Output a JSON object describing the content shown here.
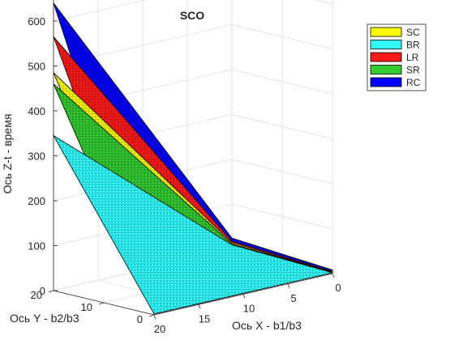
{
  "chart_data": {
    "type": "surface3d",
    "title": "SCO",
    "xlabel": "Ось X - b1/b3",
    "ylabel": "Ось Y - b2/b3",
    "zlabel": "Ось Z-t - время",
    "x_ticks": [
      "0",
      "5",
      "10",
      "15",
      "20"
    ],
    "y_ticks": [
      "0",
      "10",
      "20"
    ],
    "z_ticks": [
      "0",
      "100",
      "200",
      "300",
      "400",
      "500",
      "600"
    ],
    "xlim": [
      0,
      20
    ],
    "ylim": [
      0,
      20
    ],
    "zlim": [
      0,
      650
    ],
    "grid": true,
    "legend_position": "top-right",
    "series": [
      {
        "name": "SC",
        "color": "#ffff00",
        "z_corners": {
          "x0y0": 3,
          "x20y0": 3,
          "x20y20": 485,
          "x0y20": 15
        }
      },
      {
        "name": "BR",
        "color": "#33ffff",
        "z_corners": {
          "x0y0": 2,
          "x20y0": 2,
          "x20y20": 345,
          "x0y20": 10
        }
      },
      {
        "name": "LR",
        "color": "#ff1a1a",
        "z_corners": {
          "x0y0": 5,
          "x20y0": 5,
          "x20y20": 565,
          "x0y20": 18
        }
      },
      {
        "name": "SR",
        "color": "#33cc33",
        "z_corners": {
          "x0y0": 3,
          "x20y0": 3,
          "x20y20": 460,
          "x0y20": 12
        }
      },
      {
        "name": "RC",
        "color": "#0000ff",
        "z_corners": {
          "x0y0": 8,
          "x20y0": 8,
          "x20y20": 640,
          "x0y20": 25
        }
      }
    ]
  }
}
